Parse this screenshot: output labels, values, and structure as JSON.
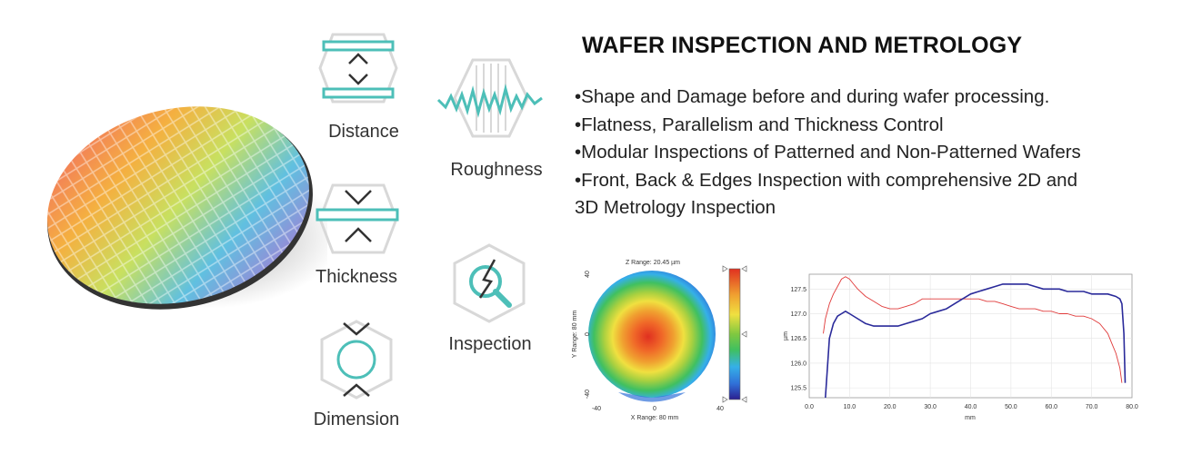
{
  "title": "WAFER INSPECTION AND METROLOGY",
  "bullets": [
    "•Shape and Damage before and during wafer processing.",
    "•Flatness, Parallelism and Thickness Control",
    "•Modular Inspections of Patterned and Non-Patterned Wafers",
    "•Front, Back & Edges  Inspection with comprehensive 2D and",
    "3D Metrology Inspection"
  ],
  "icons": {
    "distance": "Distance",
    "roughness": "Roughness",
    "thickness": "Thickness",
    "inspection": "Inspection",
    "dimension": "Dimension"
  },
  "colors": {
    "accent": "#4dbfb8",
    "icon_frame": "#d8d8d8",
    "icon_line": "#333333"
  },
  "chart_data": [
    {
      "type": "heatmap",
      "title": "Z Range: 20.45 µm",
      "xlabel": "X Range: 80 mm",
      "ylabel": "Y Range: 80 mm",
      "xlim": [
        -40,
        40
      ],
      "ylim": [
        -40,
        40
      ],
      "x_ticks": [
        "-40",
        "0",
        "40"
      ],
      "y_ticks": [
        "40",
        "0",
        "-40"
      ],
      "colorscale": [
        "#2b1f8f",
        "#3070d8",
        "#35b0e8",
        "#40c060",
        "#a8d040",
        "#f0e040",
        "#f0a030",
        "#e03020"
      ]
    },
    {
      "type": "line",
      "xlabel": "mm",
      "ylabel": "µm",
      "xlim": [
        0,
        80
      ],
      "ylim": [
        125.3,
        127.8
      ],
      "x_ticks": [
        "0.0",
        "10.0",
        "20.0",
        "30.0",
        "40.0",
        "50.0",
        "60.0",
        "70.0",
        "80.0"
      ],
      "y_ticks": [
        "127.5",
        "127.0",
        "126.5",
        "126.0",
        "125.5"
      ],
      "series": [
        {
          "color": "#e03a3a",
          "x": [
            3.5,
            4,
            5,
            6,
            7,
            8,
            9,
            10,
            11,
            12,
            14,
            16,
            18,
            20,
            22,
            24,
            26,
            28,
            30,
            32,
            34,
            36,
            38,
            40,
            42,
            44,
            46,
            48,
            50,
            52,
            54,
            56,
            58,
            60,
            62,
            64,
            66,
            68,
            70,
            72,
            74,
            75,
            76,
            77,
            77.5
          ],
          "y": [
            126.6,
            126.9,
            127.2,
            127.4,
            127.55,
            127.7,
            127.75,
            127.7,
            127.6,
            127.5,
            127.35,
            127.25,
            127.15,
            127.1,
            127.1,
            127.15,
            127.2,
            127.3,
            127.3,
            127.3,
            127.3,
            127.3,
            127.3,
            127.3,
            127.3,
            127.25,
            127.25,
            127.2,
            127.15,
            127.1,
            127.1,
            127.1,
            127.05,
            127.05,
            127.0,
            127.0,
            126.95,
            126.95,
            126.9,
            126.8,
            126.6,
            126.4,
            126.2,
            125.9,
            125.6
          ]
        },
        {
          "color": "#2a2a9a",
          "x": [
            4,
            4.5,
            5,
            6,
            7,
            8,
            9,
            10,
            12,
            14,
            16,
            18,
            20,
            22,
            24,
            26,
            28,
            30,
            32,
            34,
            36,
            38,
            40,
            42,
            44,
            46,
            48,
            50,
            52,
            54,
            56,
            58,
            60,
            62,
            64,
            66,
            68,
            70,
            72,
            74,
            76,
            77,
            77.5,
            78,
            78.3
          ],
          "y": [
            125.3,
            125.9,
            126.5,
            126.8,
            126.95,
            127.0,
            127.05,
            127.0,
            126.9,
            126.8,
            126.75,
            126.75,
            126.75,
            126.75,
            126.8,
            126.85,
            126.9,
            127.0,
            127.05,
            127.1,
            127.2,
            127.3,
            127.4,
            127.45,
            127.5,
            127.55,
            127.6,
            127.6,
            127.6,
            127.6,
            127.55,
            127.5,
            127.5,
            127.5,
            127.45,
            127.45,
            127.45,
            127.4,
            127.4,
            127.4,
            127.35,
            127.3,
            127.2,
            126.6,
            125.6
          ]
        }
      ]
    }
  ]
}
